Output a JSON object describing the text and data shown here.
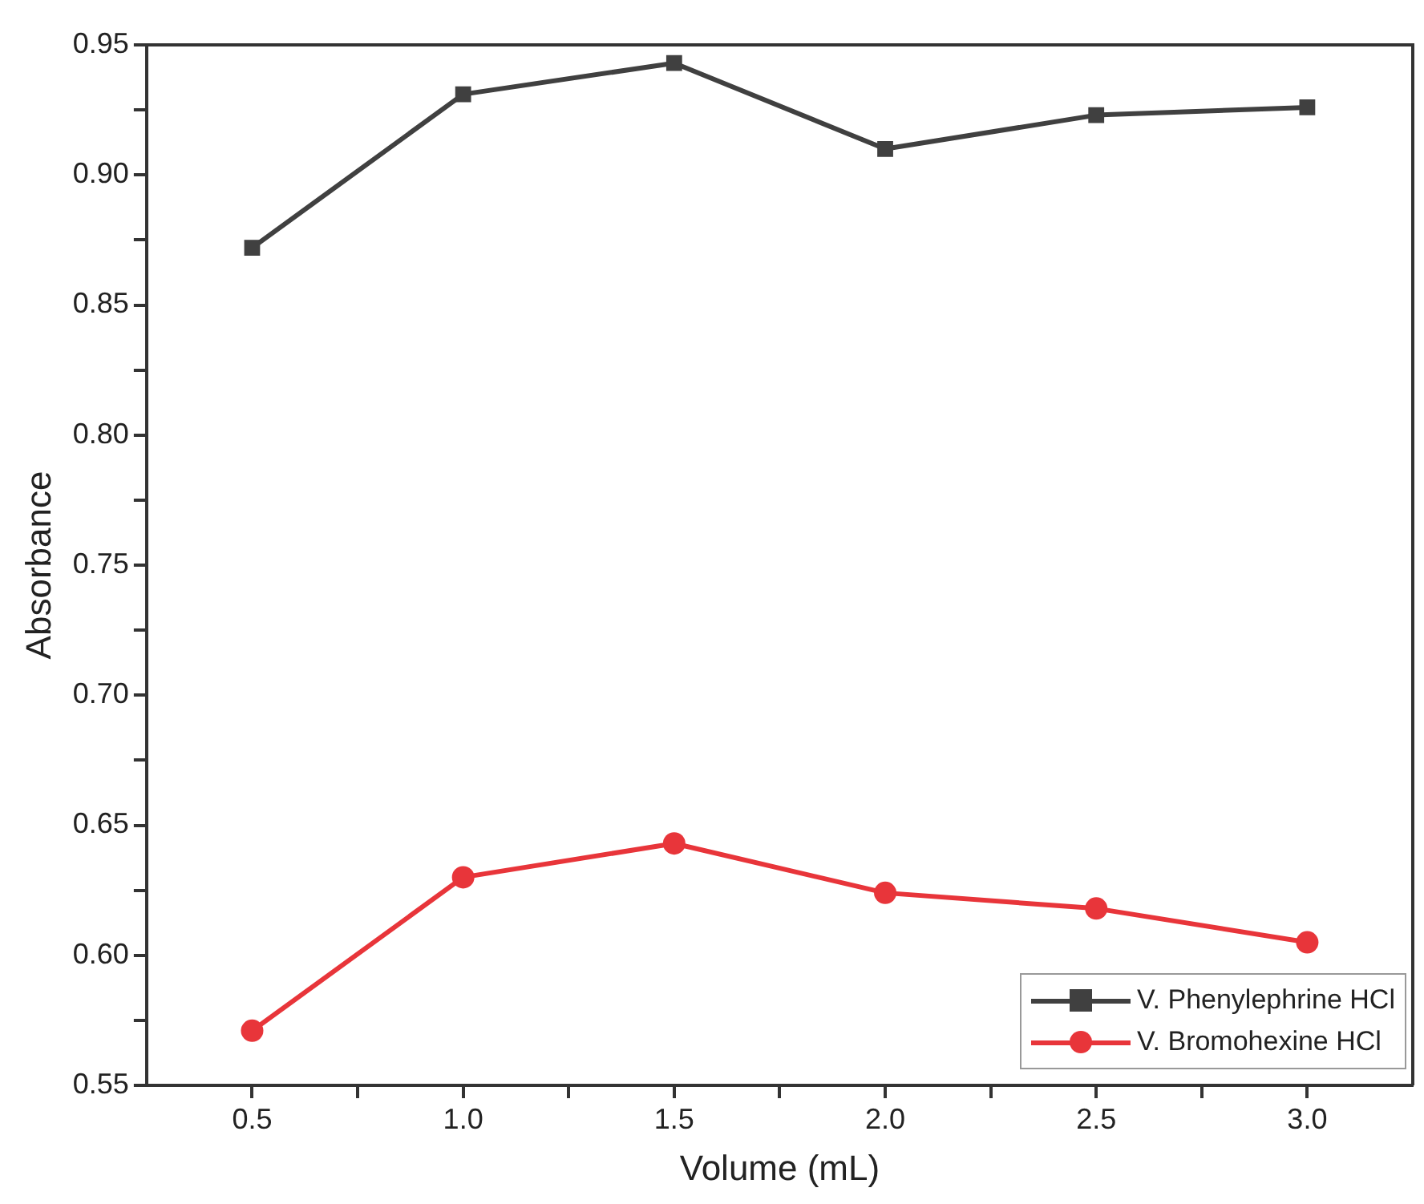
{
  "chart_data": {
    "type": "line",
    "xlabel": "Volume (mL)",
    "ylabel": "Absorbance",
    "x": [
      0.5,
      1.0,
      1.5,
      2.0,
      2.5,
      3.0
    ],
    "series": [
      {
        "name": "V. Phenylephrine HCl",
        "color": "#404040",
        "marker": "square",
        "values": [
          0.872,
          0.931,
          0.943,
          0.91,
          0.923,
          0.926
        ]
      },
      {
        "name": "V. Bromohexine HCl",
        "color": "#e8353a",
        "marker": "circle",
        "values": [
          0.571,
          0.63,
          0.643,
          0.624,
          0.618,
          0.605
        ]
      }
    ],
    "xlim": [
      0.25,
      3.25
    ],
    "xticks": [
      {
        "value": 0.5,
        "label": "0.5"
      },
      {
        "value": 0.75,
        "label": null
      },
      {
        "value": 1.0,
        "label": "1.0"
      },
      {
        "value": 1.25,
        "label": null
      },
      {
        "value": 1.5,
        "label": "1.5"
      },
      {
        "value": 1.75,
        "label": null
      },
      {
        "value": 2.0,
        "label": "2.0"
      },
      {
        "value": 2.25,
        "label": null
      },
      {
        "value": 2.5,
        "label": "2.5"
      },
      {
        "value": 2.75,
        "label": null
      },
      {
        "value": 3.0,
        "label": "3.0"
      }
    ],
    "ylim": [
      0.55,
      0.95
    ],
    "yticks": [
      {
        "value": 0.55,
        "label": "0.55"
      },
      {
        "value": 0.575,
        "label": null
      },
      {
        "value": 0.6,
        "label": "0.60"
      },
      {
        "value": 0.625,
        "label": null
      },
      {
        "value": 0.65,
        "label": "0.65"
      },
      {
        "value": 0.675,
        "label": null
      },
      {
        "value": 0.7,
        "label": "0.70"
      },
      {
        "value": 0.725,
        "label": null
      },
      {
        "value": 0.75,
        "label": "0.75"
      },
      {
        "value": 0.775,
        "label": null
      },
      {
        "value": 0.8,
        "label": "0.80"
      },
      {
        "value": 0.825,
        "label": null
      },
      {
        "value": 0.85,
        "label": "0.85"
      },
      {
        "value": 0.875,
        "label": null
      },
      {
        "value": 0.9,
        "label": "0.90"
      },
      {
        "value": 0.925,
        "label": null
      },
      {
        "value": 0.95,
        "label": "0.95"
      }
    ],
    "grid": false,
    "legend": "bottom right",
    "line_style": "solid"
  }
}
